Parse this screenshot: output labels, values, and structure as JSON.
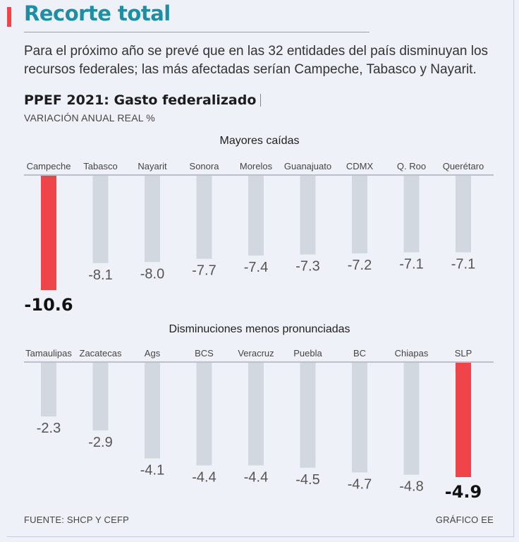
{
  "title": "Recorte total",
  "subtitle": "Para el próximo año se prevé que en las 32 entidades del país disminuyan los recursos federales; las más afectadas serían Campeche, Tabasco y Nayarit.",
  "chart_heading": "PPEF 2021: Gasto federalizado",
  "y_unit_label": "VARIACIÓN ANUAL REAL %",
  "source": "FUENTE: SHCP Y CEFP",
  "credit": "GRÁFICO EE",
  "colors": {
    "accent_red": "#ef4449",
    "bar_gray": "#d1d8e0",
    "title_teal": "#1c8fa5",
    "background": "#eef1f7"
  },
  "chart_data": [
    {
      "type": "bar",
      "title": "Mayores caídas",
      "xlabel": "",
      "ylabel": "VARIACIÓN ANUAL REAL %",
      "categories": [
        "Campeche",
        "Tabasco",
        "Nayarit",
        "Sonora",
        "Morelos",
        "Guanajuato",
        "CDMX",
        "Q. Roo",
        "Querétaro"
      ],
      "values": [
        -10.6,
        -8.1,
        -8.0,
        -7.7,
        -7.4,
        -7.3,
        -7.2,
        -7.1,
        -7.1
      ],
      "labels": [
        "-10.6",
        "-8.1",
        "-8.0",
        "-7.7",
        "-7.4",
        "-7.3",
        "-7.2",
        "-7.1",
        "-7.1"
      ],
      "highlight": [
        "Campeche"
      ],
      "ylim": [
        -10.6,
        0
      ]
    },
    {
      "type": "bar",
      "title": "Disminuciones menos pronunciadas",
      "xlabel": "",
      "ylabel": "VARIACIÓN ANUAL REAL %",
      "categories": [
        "Tamaulipas",
        "Zacatecas",
        "Ags",
        "BCS",
        "Veracruz",
        "Puebla",
        "BC",
        "Chiapas",
        "SLP"
      ],
      "values": [
        -2.3,
        -2.9,
        -4.1,
        -4.4,
        -4.4,
        -4.5,
        -4.7,
        -4.8,
        -4.9
      ],
      "labels": [
        "-2.3",
        "-2.9",
        "-4.1",
        "-4.4",
        "-4.4",
        "-4.5",
        "-4.7",
        "-4.8",
        "-4.9"
      ],
      "highlight": [
        "SLP"
      ],
      "ylim": [
        -4.9,
        0
      ]
    }
  ]
}
